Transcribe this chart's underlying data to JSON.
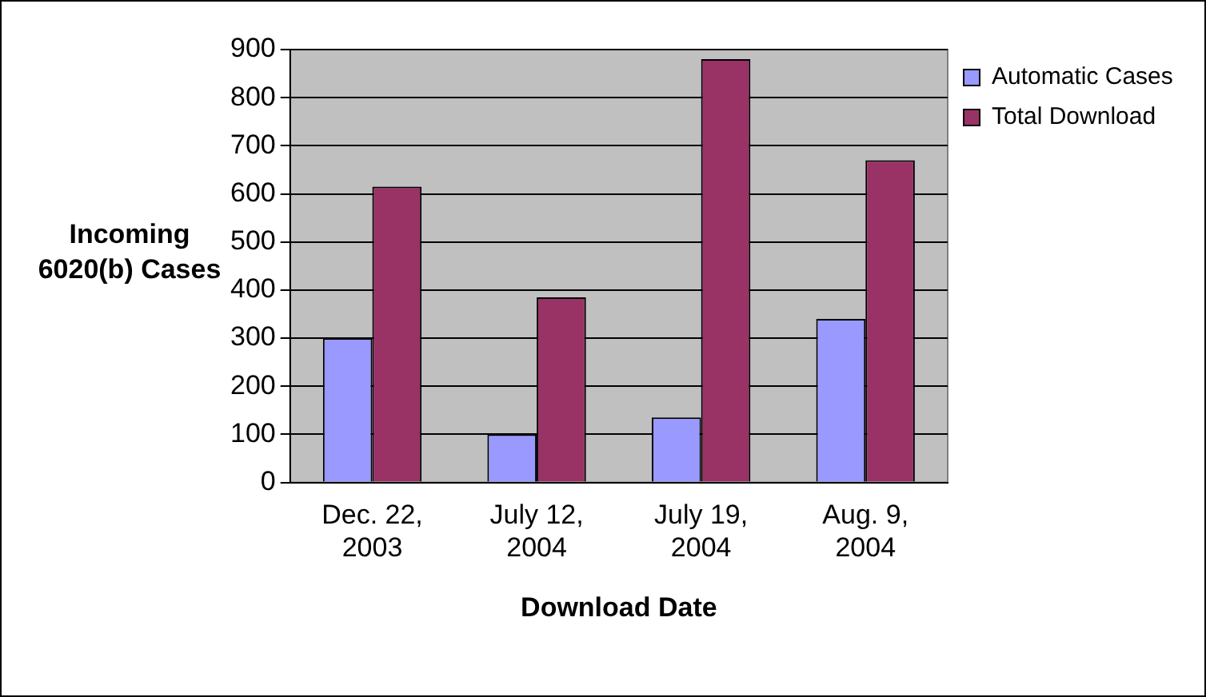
{
  "chart_data": {
    "type": "bar",
    "xlabel": "Download Date",
    "ylabel": "Incoming 6020(b) Cases",
    "categories": [
      "Dec. 22, 2003",
      "July 12, 2004",
      "July 19, 2004",
      "Aug. 9, 2004"
    ],
    "series": [
      {
        "name": "Automatic Cases",
        "color": "#9999ff",
        "values": [
          300,
          100,
          135,
          340
        ]
      },
      {
        "name": "Total Download",
        "color": "#993366",
        "values": [
          615,
          385,
          880,
          670
        ]
      }
    ],
    "ylim": [
      0,
      900
    ],
    "yticks": [
      0,
      100,
      200,
      300,
      400,
      500,
      600,
      700,
      800,
      900
    ],
    "grid": "y",
    "legend": "top right"
  }
}
